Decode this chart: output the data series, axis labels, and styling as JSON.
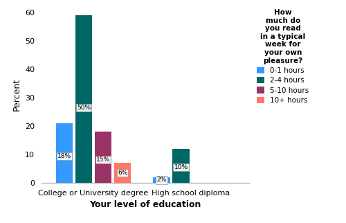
{
  "categories": [
    "College or University degree",
    "High school diploma"
  ],
  "series": [
    {
      "label": "0-1 hours",
      "color": "#3399FF",
      "values": [
        21,
        2
      ],
      "pct_labels": [
        "18%",
        "2%"
      ]
    },
    {
      "label": "2-4 hours",
      "color": "#006666",
      "values": [
        59,
        12
      ],
      "pct_labels": [
        "50%",
        "10%"
      ]
    },
    {
      "label": "5-10 hours",
      "color": "#993366",
      "values": [
        18,
        0
      ],
      "pct_labels": [
        "15%",
        ""
      ]
    },
    {
      "label": "10+ hours",
      "color": "#FF7766",
      "values": [
        7,
        0
      ],
      "pct_labels": [
        "6%",
        ""
      ]
    }
  ],
  "ylabel": "Percent",
  "xlabel": "Your level of education",
  "ylim": [
    0,
    62
  ],
  "yticks": [
    0,
    10,
    20,
    30,
    40,
    50,
    60
  ],
  "legend_title": "How\nmuch do\nyou read\nin a typical\nweek for\nyour own\npleasure?",
  "bar_width": 0.13,
  "group_centers": [
    0.35,
    1.1
  ]
}
